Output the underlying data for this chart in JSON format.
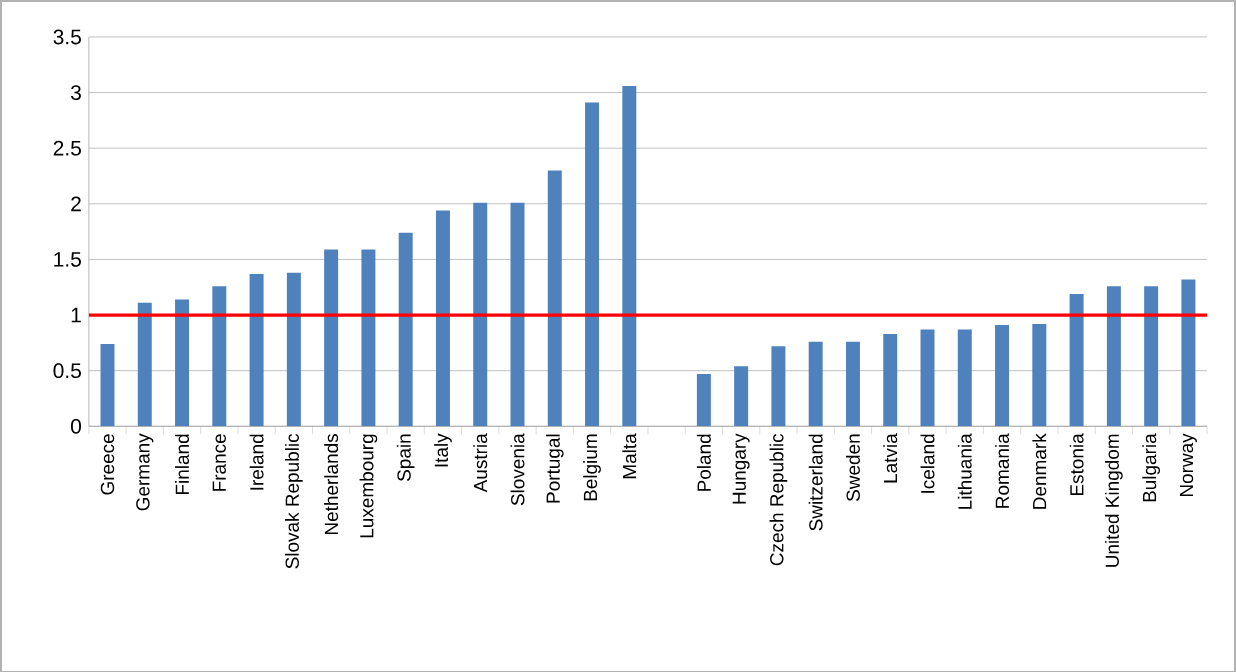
{
  "chart_data": {
    "type": "bar",
    "categories": [
      "Greece",
      "Germany",
      "Finland",
      "France",
      "Ireland",
      "Slovak Republic",
      "Netherlands",
      "Luxembourg",
      "Spain",
      "Italy",
      "Austria",
      "Slovenia",
      "Portugal",
      "Belgium",
      "Malta",
      null,
      "Poland",
      "Hungary",
      "Czech Republic",
      "Switzerland",
      "Sweden",
      "Latvia",
      "Iceland",
      "Lithuania",
      "Romania",
      "Denmark",
      "Estonia",
      "United Kingdom",
      "Bulgaria",
      "Norway"
    ],
    "values": [
      0.74,
      1.11,
      1.14,
      1.26,
      1.37,
      1.38,
      1.59,
      1.59,
      1.74,
      1.94,
      2.01,
      2.01,
      2.3,
      2.91,
      3.06,
      null,
      0.47,
      0.54,
      0.72,
      0.76,
      0.76,
      0.83,
      0.87,
      0.87,
      0.91,
      0.92,
      1.19,
      1.26,
      1.26,
      1.32
    ],
    "color": "#4f81bd",
    "ylim": [
      0,
      3.5
    ],
    "yticks": [
      0,
      0.5,
      1,
      1.5,
      2,
      2.5,
      3,
      3.5
    ],
    "grid": "y",
    "ref_lines": [
      {
        "axis": "y",
        "value": 1,
        "color": "#ff0000"
      }
    ]
  }
}
